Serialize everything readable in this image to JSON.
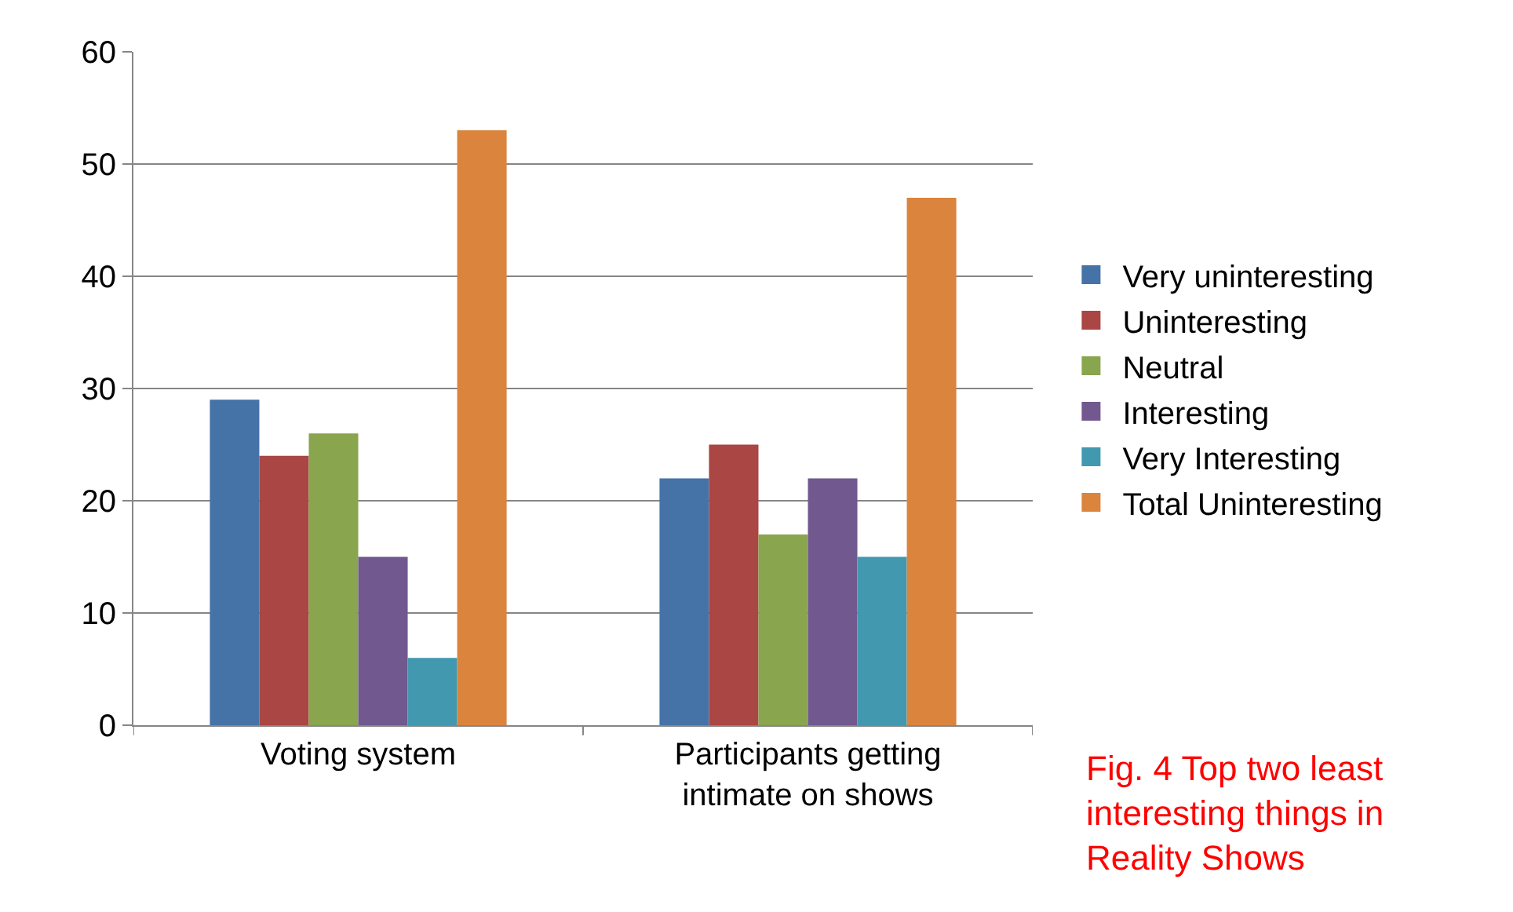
{
  "chart_data": {
    "type": "bar",
    "categories": [
      "Voting system",
      "Participants getting intimate on shows"
    ],
    "series": [
      {
        "name": "Very uninteresting",
        "color": "#4572a7",
        "values": [
          29,
          22
        ]
      },
      {
        "name": "Uninteresting",
        "color": "#aa4643",
        "values": [
          24,
          25
        ]
      },
      {
        "name": "Neutral",
        "color": "#89a54e",
        "values": [
          26,
          17
        ]
      },
      {
        "name": "Interesting",
        "color": "#71588f",
        "values": [
          15,
          22
        ]
      },
      {
        "name": "Very Interesting",
        "color": "#4198af",
        "values": [
          6,
          15
        ]
      },
      {
        "name": "Total Uninteresting",
        "color": "#db843d",
        "values": [
          53,
          47
        ]
      }
    ],
    "ylim": [
      0,
      60
    ],
    "yticks": [
      0,
      10,
      20,
      30,
      40,
      50,
      60
    ],
    "grid": "y",
    "legend": "right",
    "annotations": [
      "Fig. 4 Top two least interesting things in Reality Shows"
    ]
  }
}
